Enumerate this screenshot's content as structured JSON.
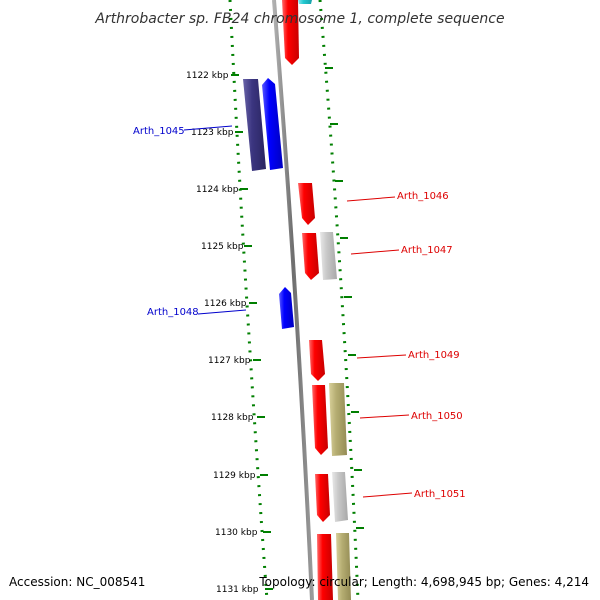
{
  "title": "Arthrobacter sp. FB24 chromosome 1, complete sequence",
  "footer": {
    "accession": "Accession: NC_008541",
    "summary": "Topology: circular; Length: 4,698,945 bp; Genes: 4,214"
  },
  "colors": {
    "forward_gene": "#ff0000",
    "reverse_gene": "#0000ff",
    "reverse_gene_dark": "#3b3580",
    "backbone": "#7f7f7f",
    "dotted_track": "#007f00",
    "grey_feature": "#c8c8c8",
    "khaki_feature": "#b5ad72",
    "cyan_feature": "#22c8d0"
  },
  "ticks": [
    {
      "label": "1122 kbp"
    },
    {
      "label": "1123 kbp"
    },
    {
      "label": "1124 kbp"
    },
    {
      "label": "1125 kbp"
    },
    {
      "label": "1126 kbp"
    },
    {
      "label": "1127 kbp"
    },
    {
      "label": "1128 kbp"
    },
    {
      "label": "1129 kbp"
    },
    {
      "label": "1130 kbp"
    },
    {
      "label": "1131 kbp"
    }
  ],
  "gene_labels": [
    {
      "name": "Arth_1045",
      "strand": "reverse"
    },
    {
      "name": "Arth_1046",
      "strand": "forward"
    },
    {
      "name": "Arth_1047",
      "strand": "forward"
    },
    {
      "name": "Arth_1048",
      "strand": "reverse"
    },
    {
      "name": "Arth_1049",
      "strand": "forward"
    },
    {
      "name": "Arth_1050",
      "strand": "forward"
    },
    {
      "name": "Arth_1051",
      "strand": "forward"
    }
  ]
}
